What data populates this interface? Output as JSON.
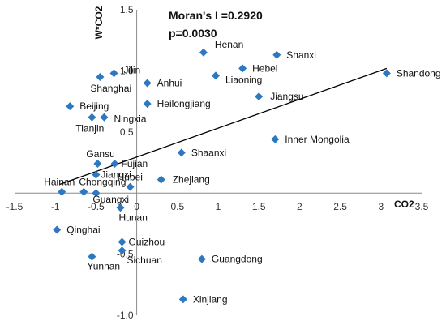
{
  "chart_data": {
    "type": "scatter",
    "xlabel": "CO2",
    "ylabel": "W*CO2",
    "annotations": [
      "Moran's I =0.2920",
      "p=0.0030"
    ],
    "xlim": [
      -1.5,
      3.5
    ],
    "ylim": [
      -1.0,
      1.5
    ],
    "x_ticks": [
      "-1.5",
      "-1",
      "-0.5",
      "0",
      "0.5",
      "1",
      "1.5",
      "2",
      "2.5",
      "3",
      "3.5"
    ],
    "y_ticks": [
      "1.5",
      "1.0",
      "0.5",
      "-0.5",
      "-1.0"
    ],
    "points": [
      {
        "name": "Henan",
        "x": 0.82,
        "y": 1.15
      },
      {
        "name": "Shanxi",
        "x": 1.72,
        "y": 1.13
      },
      {
        "name": "Hebei",
        "x": 1.3,
        "y": 1.02
      },
      {
        "name": "Shandong",
        "x": 3.07,
        "y": 0.98
      },
      {
        "name": "Liaoning",
        "x": 0.97,
        "y": 0.96
      },
      {
        "name": "Jilin",
        "x": -0.28,
        "y": 0.98
      },
      {
        "name": "Shanghai",
        "x": -0.45,
        "y": 0.95
      },
      {
        "name": "Anhui",
        "x": 0.13,
        "y": 0.9
      },
      {
        "name": "Jiangsu",
        "x": 1.5,
        "y": 0.79
      },
      {
        "name": "Heilongjiang",
        "x": 0.13,
        "y": 0.73
      },
      {
        "name": "Beijing",
        "x": -0.82,
        "y": 0.71
      },
      {
        "name": "Tianjin",
        "x": -0.55,
        "y": 0.62
      },
      {
        "name": "Ningxia",
        "x": -0.4,
        "y": 0.62
      },
      {
        "name": "Inner Mongolia",
        "x": 1.7,
        "y": 0.44
      },
      {
        "name": "Shaanxi",
        "x": 0.55,
        "y": 0.33
      },
      {
        "name": "Gansu",
        "x": -0.48,
        "y": 0.24
      },
      {
        "name": "Fujian",
        "x": -0.27,
        "y": 0.24
      },
      {
        "name": "Jiangxi",
        "x": -0.5,
        "y": 0.15
      },
      {
        "name": "Zhejiang",
        "x": 0.3,
        "y": 0.11
      },
      {
        "name": "Hubei",
        "x": -0.08,
        "y": 0.05
      },
      {
        "name": "Hainan",
        "x": -0.92,
        "y": 0.01
      },
      {
        "name": "Chongqing",
        "x": -0.65,
        "y": 0.01
      },
      {
        "name": "Guangxi",
        "x": -0.5,
        "y": 0.0
      },
      {
        "name": "Hunan",
        "x": -0.2,
        "y": -0.12
      },
      {
        "name": "Qinghai",
        "x": -0.98,
        "y": -0.3
      },
      {
        "name": "Guizhou",
        "x": -0.18,
        "y": -0.4
      },
      {
        "name": "Sichuan",
        "x": -0.18,
        "y": -0.47
      },
      {
        "name": "Yunnan",
        "x": -0.55,
        "y": -0.52
      },
      {
        "name": "Guangdong",
        "x": 0.8,
        "y": -0.54
      },
      {
        "name": "Xinjiang",
        "x": 0.57,
        "y": -0.87
      }
    ],
    "fit_line": {
      "x": [
        -0.95,
        3.07
      ],
      "y": [
        0.07,
        1.02
      ]
    },
    "marker_color": "#2E78C0",
    "line_color": "#000000",
    "grid": false,
    "legend": "none"
  }
}
